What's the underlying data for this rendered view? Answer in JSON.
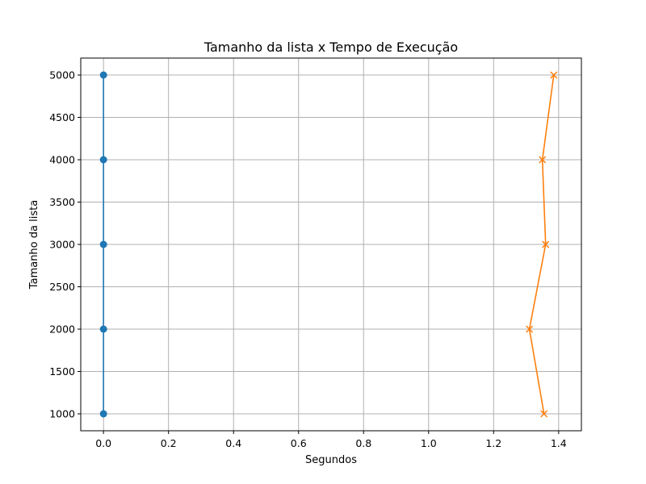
{
  "chart_data": {
    "type": "line",
    "title": "Tamanho da lista x Tempo de Execução",
    "xlabel": "Segundos",
    "ylabel": "Tamanho da lista",
    "xlim": [
      -0.07,
      1.47
    ],
    "ylim": [
      800,
      5200
    ],
    "x_ticks": [
      0.0,
      0.2,
      0.4,
      0.6,
      0.8,
      1.0,
      1.2,
      1.4
    ],
    "x_tick_labels": [
      "0.0",
      "0.2",
      "0.4",
      "0.6",
      "0.8",
      "1.0",
      "1.2",
      "1.4"
    ],
    "y_ticks": [
      1000,
      1500,
      2000,
      2500,
      3000,
      3500,
      4000,
      4500,
      5000
    ],
    "y_tick_labels": [
      "1000",
      "1500",
      "2000",
      "2500",
      "3000",
      "3500",
      "4000",
      "4500",
      "5000"
    ],
    "grid": true,
    "series": [
      {
        "marker": "circle",
        "color": "#1f77b4",
        "points": [
          {
            "x": 0.0,
            "y": 1000
          },
          {
            "x": 0.0,
            "y": 2000
          },
          {
            "x": 0.0,
            "y": 3000
          },
          {
            "x": 0.0,
            "y": 4000
          },
          {
            "x": 0.0,
            "y": 5000
          }
        ]
      },
      {
        "marker": "x",
        "color": "#ff7f0e",
        "points": [
          {
            "x": 1.355,
            "y": 1000
          },
          {
            "x": 1.31,
            "y": 2000
          },
          {
            "x": 1.36,
            "y": 3000
          },
          {
            "x": 1.35,
            "y": 4000
          },
          {
            "x": 1.385,
            "y": 5000
          }
        ]
      }
    ]
  }
}
